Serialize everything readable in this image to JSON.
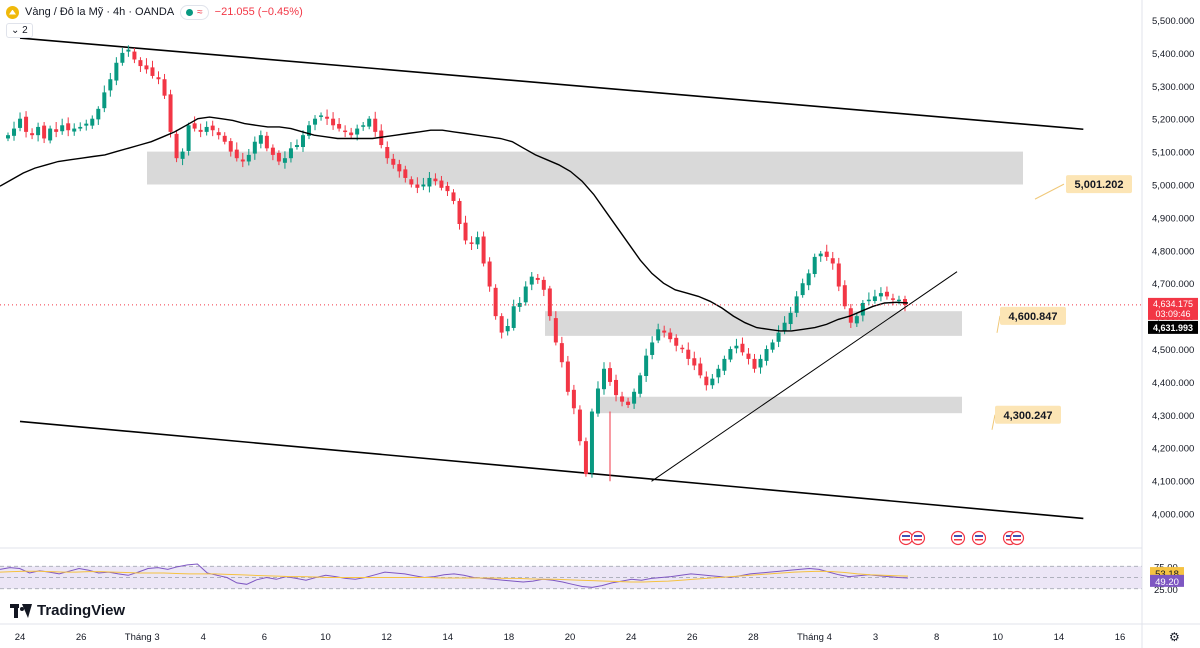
{
  "header": {
    "symbol": "Vàng / Đô la Mỹ · 4h · OANDA",
    "change": "−21.055 (−0.45%)",
    "wave_glyph": "≈",
    "collapse_label": "⌄ 2"
  },
  "branding": {
    "logo_text": "TradingView"
  },
  "icons": {
    "symbol": "gold-coin-icon",
    "settings": "gear-icon"
  },
  "colors": {
    "up": "#089981",
    "down": "#f23645",
    "ma": "#000000",
    "zone": "#d9d9d9",
    "label_bg": "#fce5b5",
    "rsi": "#7e57c2",
    "rsi_ma": "#f5c242",
    "rsi_band": "#ece6f6"
  },
  "chart_data": {
    "type": "candlestick",
    "timeframe": "4h",
    "ylim": [
      3950,
      5500
    ],
    "y_ticks": [
      "5,500.000",
      "5,400.000",
      "5,300.000",
      "5,200.000",
      "5,100.000",
      "5,000.000",
      "4,900.000",
      "4,800.000",
      "4,700.000",
      "4,600.000",
      "4,500.000",
      "4,400.000",
      "4,300.000",
      "4,200.000",
      "4,100.000",
      "4,000.000"
    ],
    "y_tick_values": [
      5500,
      5400,
      5300,
      5200,
      5100,
      5000,
      4900,
      4800,
      4700,
      4600,
      4500,
      4400,
      4300,
      4200,
      4100,
      4000
    ],
    "x_ticks": [
      "24",
      "26",
      "Tháng 3",
      "4",
      "6",
      "10",
      "12",
      "14",
      "18",
      "20",
      "24",
      "26",
      "28",
      "Tháng 4",
      "3",
      "8",
      "10",
      "14",
      "16"
    ],
    "x_tick_indices": [
      0,
      15,
      30,
      45,
      60,
      75,
      90,
      105,
      120,
      135,
      150,
      165,
      180,
      195,
      210,
      225,
      240,
      255,
      270
    ],
    "close_path": [
      5150,
      5170,
      5200,
      5160,
      5150,
      5175,
      5140,
      5170,
      5160,
      5180,
      5165,
      5170,
      5175,
      5185,
      5200,
      5230,
      5280,
      5320,
      5370,
      5400,
      5410,
      5380,
      5360,
      5350,
      5330,
      5320,
      5270,
      5160,
      5080,
      5100,
      5180,
      5170,
      5160,
      5175,
      5165,
      5150,
      5130,
      5100,
      5080,
      5070,
      5090,
      5130,
      5150,
      5110,
      5090,
      5070,
      5080,
      5110,
      5120,
      5150,
      5180,
      5200,
      5210,
      5200,
      5180,
      5170,
      5160,
      5150,
      5170,
      5180,
      5200,
      5160,
      5120,
      5080,
      5060,
      5040,
      5020,
      5000,
      4990,
      5000,
      5020,
      5010,
      4990,
      4980,
      4950,
      4880,
      4830,
      4820,
      4840,
      4760,
      4690,
      4600,
      4550,
      4570,
      4630,
      4640,
      4690,
      4720,
      4710,
      4680,
      4600,
      4520,
      4460,
      4370,
      4320,
      4220,
      4120,
      4310,
      4380,
      4440,
      4400,
      4360,
      4340,
      4330,
      4370,
      4420,
      4480,
      4520,
      4560,
      4550,
      4530,
      4510,
      4500,
      4470,
      4450,
      4420,
      4390,
      4410,
      4440,
      4470,
      4500,
      4510,
      4490,
      4470,
      4440,
      4470,
      4500,
      4520,
      4550,
      4580,
      4610,
      4660,
      4700,
      4730,
      4780,
      4790,
      4780,
      4760,
      4690,
      4630,
      4580,
      4600,
      4640,
      4650,
      4660,
      4670,
      4660,
      4650,
      4650,
      4634
    ],
    "ma_path": [
      4995,
      5015,
      5035,
      5050,
      5060,
      5070,
      5075,
      5080,
      5085,
      5090,
      5100,
      5110,
      5120,
      5130,
      5145,
      5160,
      5180,
      5200,
      5205,
      5200,
      5195,
      5185,
      5180,
      5175,
      5175,
      5170,
      5160,
      5150,
      5145,
      5140,
      5140,
      5140,
      5140,
      5145,
      5150,
      5155,
      5160,
      5165,
      5165,
      5160,
      5155,
      5150,
      5145,
      5140,
      5130,
      5110,
      5090,
      5075,
      5060,
      5040,
      5010,
      4970,
      4920,
      4870,
      4820,
      4770,
      4730,
      4700,
      4680,
      4670,
      4660,
      4645,
      4625,
      4600,
      4580,
      4565,
      4560,
      4555,
      4555,
      4560,
      4565,
      4575,
      4590,
      4600,
      4615,
      4630,
      4640,
      4642,
      4640
    ],
    "annotations": [
      {
        "label": "5,001.202",
        "value": 5001.202
      },
      {
        "label": "4,600.847",
        "value": 4600.847
      },
      {
        "label": "4,300.247",
        "value": 4300.247
      }
    ],
    "zones": [
      {
        "low": 5000,
        "high": 5100
      },
      {
        "low": 4540,
        "high": 4615
      },
      {
        "low": 4305,
        "high": 4355
      }
    ],
    "channel": {
      "upper": [
        {
          "x": 0,
          "y": 5445
        },
        {
          "x": 261,
          "y": 5168
        }
      ],
      "lower": [
        {
          "x": 0,
          "y": 4280
        },
        {
          "x": 261,
          "y": 3985
        }
      ]
    },
    "trendline": [
      {
        "x": 155,
        "y": 4098
      },
      {
        "x": 230,
        "y": 4735
      }
    ],
    "price_labels": {
      "last": "4,634.175",
      "countdown": "03:09:46",
      "ma": "4,631.993",
      "last_value": 4634.175,
      "ma_value": 4631.993
    },
    "rsi": {
      "ticks": [
        "75.00",
        "25.00"
      ],
      "tick_values": [
        75,
        25
      ],
      "labels": [
        "53.18",
        "49.20"
      ],
      "values": [
        53.18,
        49.2
      ],
      "rsi_path": [
        68,
        72,
        70,
        60,
        65,
        62,
        58,
        64,
        70,
        66,
        60,
        62,
        58,
        55,
        62,
        70,
        72,
        68,
        74,
        78,
        80,
        60,
        55,
        50,
        38,
        35,
        45,
        50,
        46,
        52,
        48,
        44,
        50,
        55,
        52,
        48,
        46,
        50,
        56,
        62,
        60,
        58,
        54,
        50,
        52,
        56,
        58,
        55,
        50,
        48,
        46,
        44,
        42,
        40,
        42,
        46,
        44,
        40,
        35,
        30,
        28,
        32,
        38,
        42,
        46,
        44,
        48,
        50,
        52,
        55,
        58,
        56,
        54,
        52,
        50,
        54,
        58,
        60,
        62,
        64,
        66,
        68,
        70,
        68,
        62,
        56,
        52,
        54,
        56,
        54,
        52,
        50,
        49
      ],
      "ma_path": [
        62,
        63,
        64,
        64,
        63,
        62,
        62,
        63,
        63,
        62,
        61,
        60,
        60,
        60,
        59,
        58,
        58,
        58,
        57,
        56,
        55,
        54,
        53,
        52,
        52,
        51,
        50,
        50,
        50,
        50,
        50,
        50,
        50,
        50,
        50,
        49,
        49,
        49,
        49,
        49,
        48,
        48,
        47,
        46,
        46,
        45,
        44,
        43,
        42,
        41,
        40,
        40,
        41,
        42,
        44,
        46,
        48,
        50,
        52,
        54,
        56,
        58,
        60,
        62,
        63,
        64,
        63,
        61,
        58,
        56,
        55,
        54,
        53.18
      ]
    }
  }
}
